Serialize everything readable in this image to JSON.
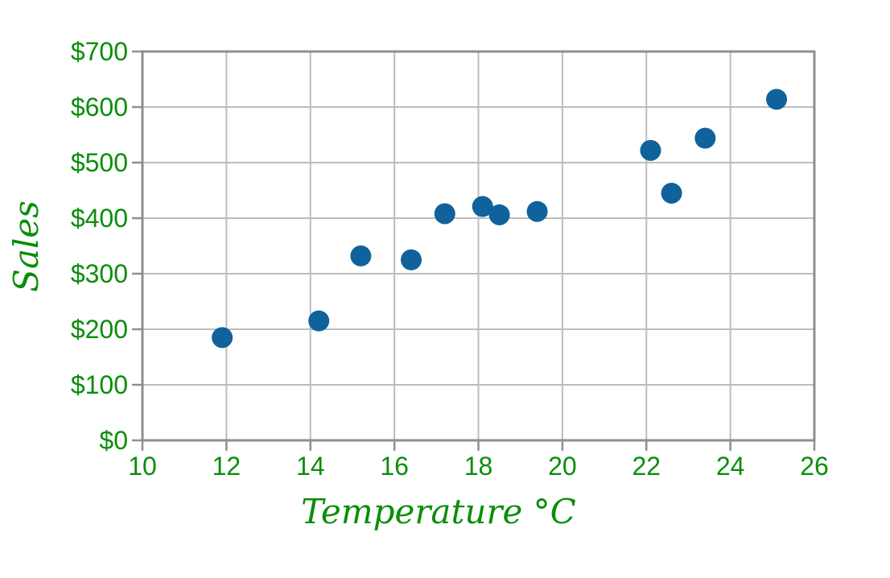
{
  "chart_data": {
    "type": "scatter",
    "title": "",
    "xlabel": "Temperature °C",
    "ylabel": "Sales",
    "xlim": [
      10,
      26
    ],
    "ylim": [
      0,
      700
    ],
    "x_tick_step": 2,
    "y_tick_step": 100,
    "x_tick_labels": [
      "10",
      "12",
      "14",
      "16",
      "18",
      "20",
      "22",
      "24",
      "26"
    ],
    "y_tick_labels": [
      "$0",
      "$100",
      "$200",
      "$300",
      "$400",
      "$500",
      "$600",
      "$700"
    ],
    "grid": true,
    "legend_position": "none",
    "points": [
      {
        "x": 11.9,
        "y": 185
      },
      {
        "x": 14.2,
        "y": 215
      },
      {
        "x": 15.2,
        "y": 332
      },
      {
        "x": 16.4,
        "y": 325
      },
      {
        "x": 17.2,
        "y": 408
      },
      {
        "x": 18.1,
        "y": 421
      },
      {
        "x": 18.5,
        "y": 406
      },
      {
        "x": 19.4,
        "y": 412
      },
      {
        "x": 22.1,
        "y": 522
      },
      {
        "x": 22.6,
        "y": 445
      },
      {
        "x": 23.4,
        "y": 544
      },
      {
        "x": 25.1,
        "y": 614
      }
    ],
    "marker_radius_px": 13,
    "colors": {
      "marker": "#10629c",
      "axis_text": "#0a8e0a",
      "gridline": "#bdbdbd",
      "spine": "#8f8f8f"
    }
  }
}
